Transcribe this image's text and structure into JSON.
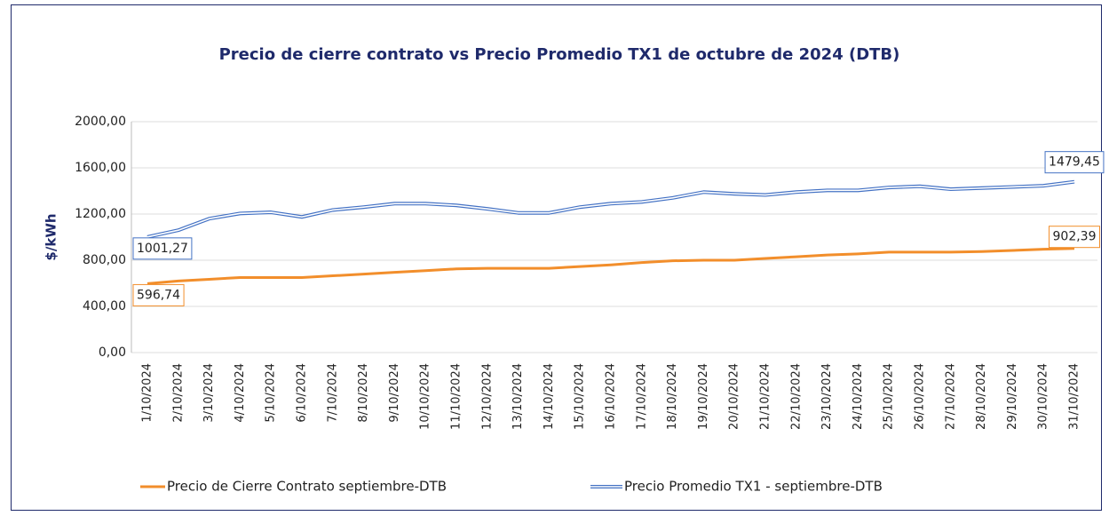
{
  "chart_data": {
    "type": "line",
    "title": "Precio de cierre contrato vs Precio Promedio TX1 de octubre de 2024 (DTB)",
    "y_label": "$/kWh",
    "categories": [
      "1/10/2024",
      "2/10/2024",
      "3/10/2024",
      "4/10/2024",
      "5/10/2024",
      "6/10/2024",
      "7/10/2024",
      "8/10/2024",
      "9/10/2024",
      "10/10/2024",
      "11/10/2024",
      "12/10/2024",
      "13/10/2024",
      "14/10/2024",
      "15/10/2024",
      "16/10/2024",
      "17/10/2024",
      "18/10/2024",
      "19/10/2024",
      "20/10/2024",
      "21/10/2024",
      "22/10/2024",
      "23/10/2024",
      "24/10/2024",
      "25/10/2024",
      "26/10/2024",
      "27/10/2024",
      "28/10/2024",
      "29/10/2024",
      "30/10/2024",
      "31/10/2024"
    ],
    "series": [
      {
        "name": "Precio de Cierre Contrato septiembre-DTB",
        "color": "#f28e2b",
        "values": [
          596.74,
          620,
          635,
          650,
          650,
          650,
          665,
          680,
          695,
          710,
          725,
          730,
          730,
          730,
          745,
          760,
          780,
          795,
          800,
          800,
          815,
          830,
          845,
          855,
          870,
          870,
          870,
          875,
          885,
          895,
          902.39
        ],
        "value_labels": [
          "596,74",
          null,
          null,
          null,
          null,
          null,
          null,
          null,
          null,
          null,
          null,
          null,
          null,
          null,
          null,
          null,
          null,
          null,
          null,
          null,
          null,
          null,
          null,
          null,
          null,
          null,
          null,
          null,
          null,
          null,
          "902,39"
        ]
      },
      {
        "name": "Precio Promedio TX1 - septiembre-DTB",
        "color": "#4472c4",
        "values": [
          1001.27,
          1060,
          1160,
          1205,
          1215,
          1175,
          1235,
          1260,
          1290,
          1290,
          1275,
          1245,
          1210,
          1210,
          1260,
          1290,
          1305,
          1340,
          1390,
          1375,
          1365,
          1390,
          1405,
          1405,
          1430,
          1440,
          1415,
          1425,
          1435,
          1445,
          1479.45
        ],
        "value_labels": [
          "1001,27",
          null,
          null,
          null,
          null,
          null,
          null,
          null,
          null,
          null,
          null,
          null,
          null,
          null,
          null,
          null,
          null,
          null,
          null,
          null,
          null,
          null,
          null,
          null,
          null,
          null,
          null,
          null,
          null,
          null,
          "1479,45"
        ]
      }
    ],
    "ylim": [
      0,
      2000
    ],
    "yticks": [
      {
        "value": 0,
        "label": "0,00"
      },
      {
        "value": 400,
        "label": "400,00"
      },
      {
        "value": 800,
        "label": "800,00"
      },
      {
        "value": 1200,
        "label": "1200,00"
      },
      {
        "value": 1600,
        "label": "1600,00"
      },
      {
        "value": 2000,
        "label": "2000,00"
      }
    ],
    "grid": true
  }
}
